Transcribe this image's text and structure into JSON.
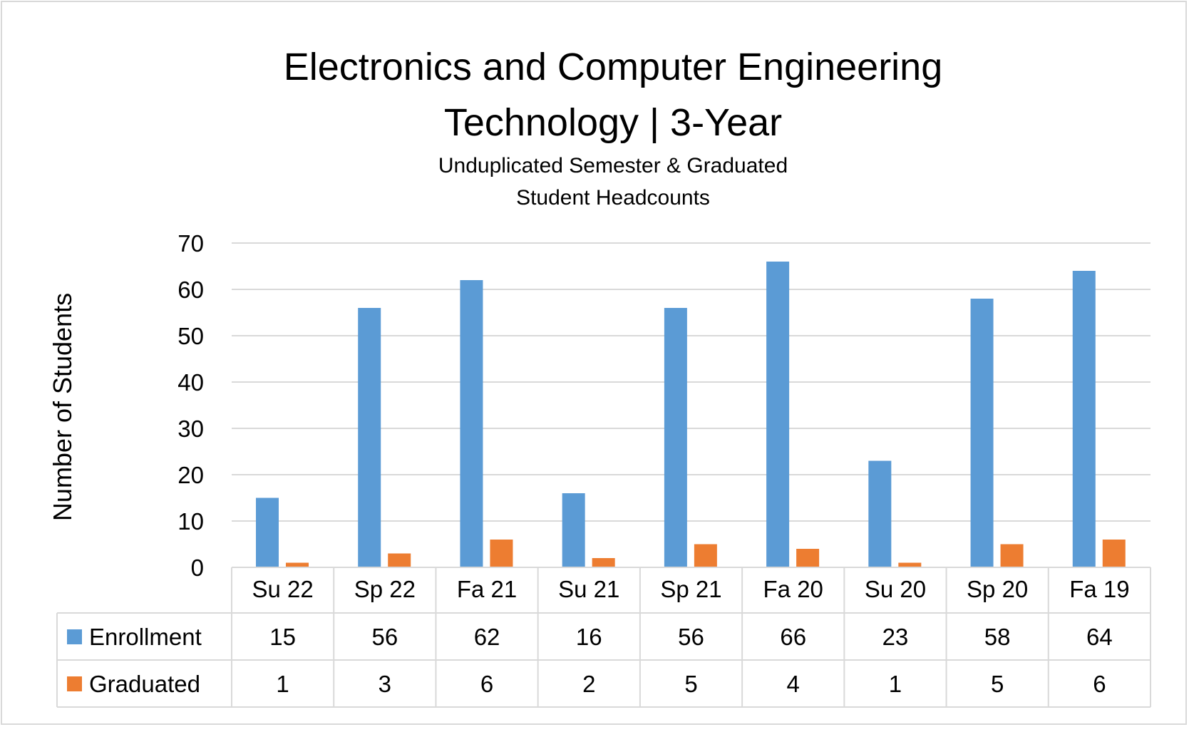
{
  "chart_data": {
    "type": "bar",
    "title": "Electronics and Computer Engineering Technology | 3-Year",
    "title_lines": [
      "Electronics and Computer Engineering",
      "Technology | 3-Year"
    ],
    "subtitle_lines": [
      "Unduplicated Semester & Graduated",
      "Student Headcounts"
    ],
    "xlabel": "",
    "ylabel": "Number of Students",
    "ylim": [
      0,
      70
    ],
    "yticks": [
      0,
      10,
      20,
      30,
      40,
      50,
      60,
      70
    ],
    "grid": true,
    "legend": "data-table",
    "categories": [
      "Su 22",
      "Sp 22",
      "Fa 21",
      "Su 21",
      "Sp 21",
      "Fa 20",
      "Su 20",
      "Sp 20",
      "Fa 19"
    ],
    "series": [
      {
        "name": "Enrollment",
        "color": "#5b9bd5",
        "values": [
          15,
          56,
          62,
          16,
          56,
          66,
          23,
          58,
          64
        ]
      },
      {
        "name": "Graduated",
        "color": "#ed7d31",
        "values": [
          1,
          3,
          6,
          2,
          5,
          4,
          1,
          5,
          6
        ]
      }
    ]
  }
}
